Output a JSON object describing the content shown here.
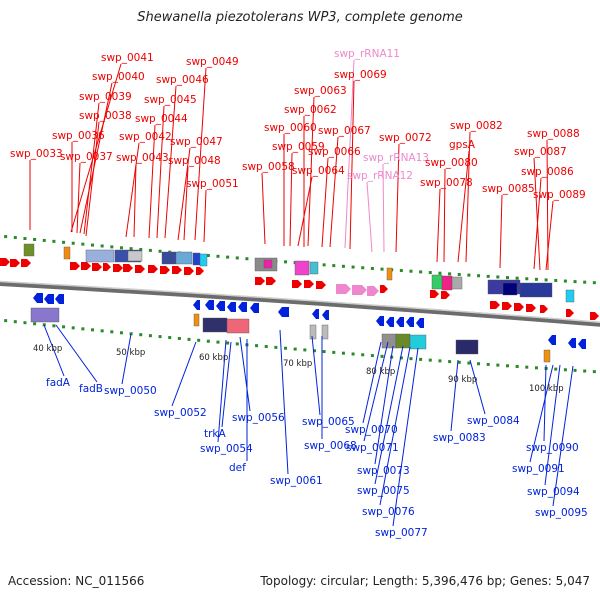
{
  "title": "Shewanella piezotolerans WP3, complete genome",
  "footer": {
    "accession": "Accession: NC_011566",
    "summary": "Topology: circular; Length: 5,396,476 bp; Genes: 5,047"
  },
  "colors": {
    "forward": "#ee0000",
    "reverse": "#0022dd",
    "rna": "#ee88cc",
    "backbone": "#888888",
    "tick": "#2a8a2a"
  },
  "scale_labels": [
    "40 kbp",
    "50 kbp",
    "60 kbp",
    "70 kbp",
    "80 kbp",
    "90 kbp",
    "100 kbp"
  ],
  "top_labels": [
    {
      "text": "swp_0041",
      "kind": "forward"
    },
    {
      "text": "swp_0049",
      "kind": "forward"
    },
    {
      "text": "swp_0040",
      "kind": "forward"
    },
    {
      "text": "swp_0046",
      "kind": "forward"
    },
    {
      "text": "swp_0039",
      "kind": "forward"
    },
    {
      "text": "swp_0045",
      "kind": "forward"
    },
    {
      "text": "swp_0038",
      "kind": "forward"
    },
    {
      "text": "swp_0044",
      "kind": "forward"
    },
    {
      "text": "swp_0036",
      "kind": "forward"
    },
    {
      "text": "swp_0042",
      "kind": "forward"
    },
    {
      "text": "swp_0047",
      "kind": "forward"
    },
    {
      "text": "swp_0033",
      "kind": "forward"
    },
    {
      "text": "swp_0037",
      "kind": "forward"
    },
    {
      "text": "swp_0043",
      "kind": "forward"
    },
    {
      "text": "swp_0048",
      "kind": "forward"
    },
    {
      "text": "swp_0051",
      "kind": "forward"
    },
    {
      "text": "swp_rRNA11",
      "kind": "rna"
    },
    {
      "text": "swp_0069",
      "kind": "forward"
    },
    {
      "text": "swp_0063",
      "kind": "forward"
    },
    {
      "text": "swp_0062",
      "kind": "forward"
    },
    {
      "text": "swp_0060",
      "kind": "forward"
    },
    {
      "text": "swp_0067",
      "kind": "forward"
    },
    {
      "text": "swp_0072",
      "kind": "forward"
    },
    {
      "text": "swp_0059",
      "kind": "forward"
    },
    {
      "text": "swp_0066",
      "kind": "forward"
    },
    {
      "text": "swp_rRNA13",
      "kind": "rna"
    },
    {
      "text": "swp_0058",
      "kind": "forward"
    },
    {
      "text": "swp_0064",
      "kind": "forward"
    },
    {
      "text": "swp_rRNA12",
      "kind": "rna"
    },
    {
      "text": "swp_0082",
      "kind": "forward"
    },
    {
      "text": "swp_0088",
      "kind": "forward"
    },
    {
      "text": "gpsA",
      "kind": "forward"
    },
    {
      "text": "swp_0087",
      "kind": "forward"
    },
    {
      "text": "swp_0080",
      "kind": "forward"
    },
    {
      "text": "swp_0086",
      "kind": "forward"
    },
    {
      "text": "swp_0078",
      "kind": "forward"
    },
    {
      "text": "swp_0085",
      "kind": "forward"
    },
    {
      "text": "swp_0089",
      "kind": "forward"
    }
  ],
  "bottom_labels": [
    {
      "text": "fadA",
      "kind": "reverse"
    },
    {
      "text": "fadB",
      "kind": "reverse"
    },
    {
      "text": "swp_0050",
      "kind": "reverse"
    },
    {
      "text": "swp_0052",
      "kind": "reverse"
    },
    {
      "text": "swp_0056",
      "kind": "reverse"
    },
    {
      "text": "trkA",
      "kind": "reverse"
    },
    {
      "text": "swp_0054",
      "kind": "reverse"
    },
    {
      "text": "def",
      "kind": "reverse"
    },
    {
      "text": "swp_0061",
      "kind": "reverse"
    },
    {
      "text": "swp_0065",
      "kind": "reverse"
    },
    {
      "text": "swp_0068",
      "kind": "reverse"
    },
    {
      "text": "swp_0070",
      "kind": "reverse"
    },
    {
      "text": "swp_0071",
      "kind": "reverse"
    },
    {
      "text": "swp_0073",
      "kind": "reverse"
    },
    {
      "text": "swp_0075",
      "kind": "reverse"
    },
    {
      "text": "swp_0076",
      "kind": "reverse"
    },
    {
      "text": "swp_0077",
      "kind": "reverse"
    },
    {
      "text": "swp_0084",
      "kind": "reverse"
    },
    {
      "text": "swp_0083",
      "kind": "reverse"
    },
    {
      "text": "swp_0090",
      "kind": "reverse"
    },
    {
      "text": "swp_0091",
      "kind": "reverse"
    },
    {
      "text": "swp_0094",
      "kind": "reverse"
    },
    {
      "text": "swp_0095",
      "kind": "reverse"
    }
  ]
}
